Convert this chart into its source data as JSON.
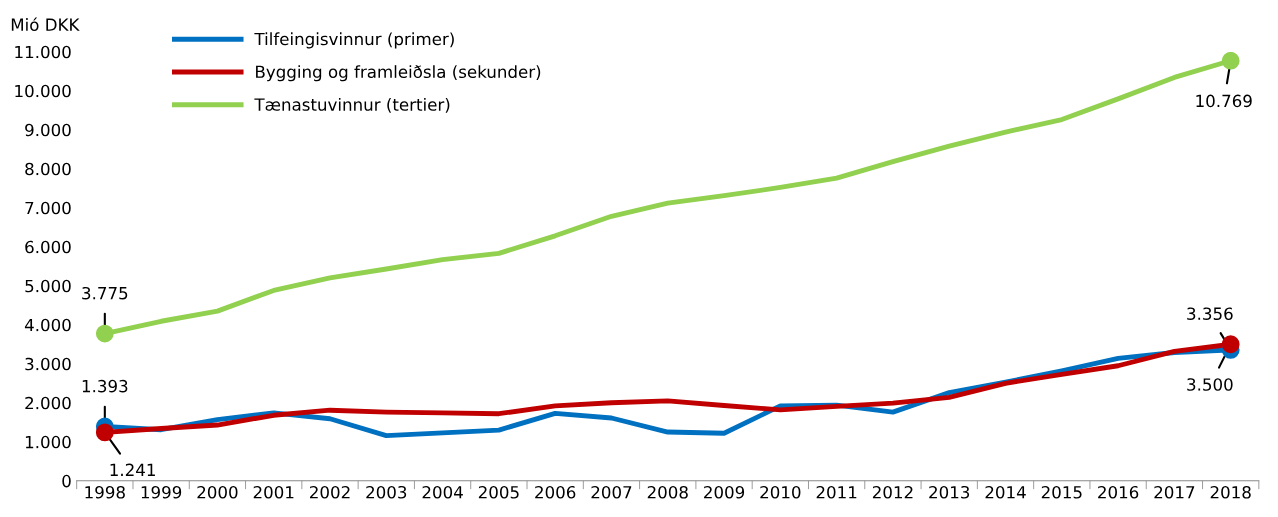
{
  "chart_data": {
    "type": "line",
    "ylabel": "Mió DKK",
    "categories": [
      "1998",
      "1999",
      "2000",
      "2001",
      "2002",
      "2003",
      "2004",
      "2005",
      "2006",
      "2007",
      "2008",
      "2009",
      "2010",
      "2011",
      "2012",
      "2013",
      "2014",
      "2015",
      "2016",
      "2017",
      "2018"
    ],
    "series": [
      {
        "name": "Tilfeingisvinnur (primer)",
        "color": "#0070c0",
        "values": [
          1393,
          1310,
          1570,
          1740,
          1590,
          1160,
          1230,
          1300,
          1730,
          1610,
          1250,
          1220,
          1920,
          1940,
          1760,
          2260,
          2530,
          2820,
          3140,
          3290,
          3356
        ],
        "value_labels": [
          "1.393",
          null,
          null,
          null,
          null,
          null,
          null,
          null,
          null,
          null,
          null,
          null,
          null,
          null,
          null,
          null,
          null,
          null,
          null,
          null,
          "3.356"
        ]
      },
      {
        "name": "Bygging og framleiðsla (sekunder)",
        "color": "#c00000",
        "values": [
          1241,
          1340,
          1430,
          1680,
          1810,
          1760,
          1740,
          1720,
          1920,
          2000,
          2050,
          1930,
          1820,
          1910,
          1990,
          2140,
          2500,
          2730,
          2950,
          3320,
          3500
        ],
        "value_labels": [
          "1.241",
          null,
          null,
          null,
          null,
          null,
          null,
          null,
          null,
          null,
          null,
          null,
          null,
          null,
          null,
          null,
          null,
          null,
          null,
          null,
          "3.500"
        ]
      },
      {
        "name": "Tænastuvinnur (tertier)",
        "color": "#92d050",
        "values": [
          3775,
          4090,
          4350,
          4880,
          5200,
          5430,
          5670,
          5830,
          6280,
          6780,
          7120,
          7310,
          7520,
          7760,
          8180,
          8580,
          8940,
          9260,
          9790,
          10340,
          10769
        ],
        "value_labels": [
          "3.775",
          null,
          null,
          null,
          null,
          null,
          null,
          null,
          null,
          null,
          null,
          null,
          null,
          null,
          null,
          null,
          null,
          null,
          null,
          null,
          "10.769"
        ]
      }
    ],
    "ylim": [
      0,
      11000
    ],
    "yticks": [
      0,
      {
        "value": 1000,
        "label": "1.000"
      },
      {
        "value": 2000,
        "label": "2.000"
      },
      {
        "value": 3000,
        "label": "3.000"
      },
      {
        "value": 4000,
        "label": "4.000"
      },
      {
        "value": 5000,
        "label": "5.000"
      },
      {
        "value": 6000,
        "label": "6.000"
      },
      {
        "value": 7000,
        "label": "7.000"
      },
      {
        "value": 8000,
        "label": "8.000"
      },
      {
        "value": 9000,
        "label": "9.000"
      },
      {
        "value": 10000,
        "label": "10.000"
      },
      {
        "value": 11000,
        "label": "11.000"
      }
    ],
    "legend": "top left",
    "grid": false,
    "line_style": "solid"
  }
}
